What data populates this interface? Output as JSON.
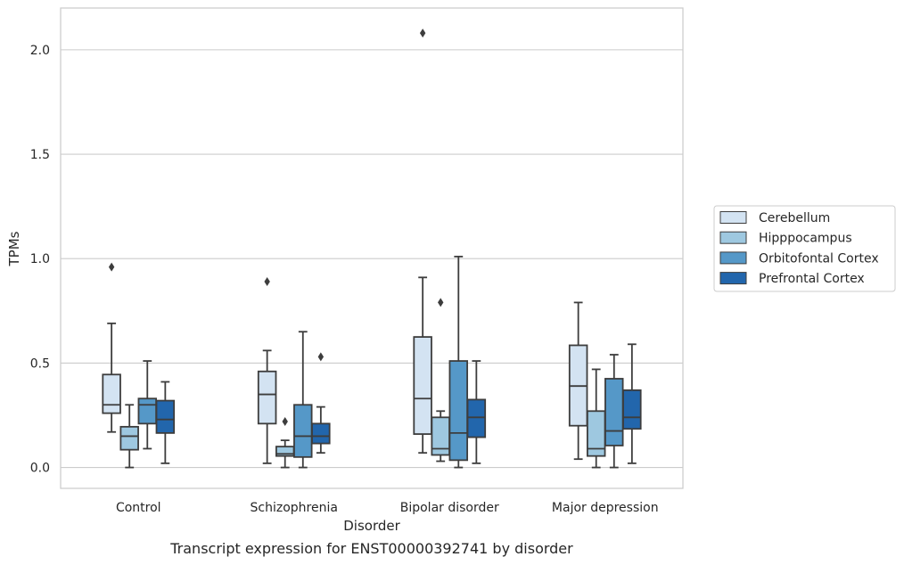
{
  "caption": "Transcript expression for ENST00000392741 by disorder",
  "chart_data": {
    "type": "boxplot",
    "title": "",
    "xlabel": "Disorder",
    "ylabel": "TPMs",
    "ylim": [
      -0.1,
      2.2
    ],
    "yticks": [
      0.0,
      0.5,
      1.0,
      1.5,
      2.0
    ],
    "ytick_labels": [
      "0.0",
      "0.5",
      "1.0",
      "1.5",
      "2.0"
    ],
    "grid": "horizontal",
    "legend_position": "right",
    "categories": [
      "Control",
      "Schizophrenia",
      "Bipolar disorder",
      "Major depression"
    ],
    "series": [
      {
        "name": "Cerebellum",
        "color": "#d3e3f2",
        "boxes": [
          {
            "whisker_low": 0.17,
            "q1": 0.26,
            "median": 0.3,
            "q3": 0.445,
            "whisker_high": 0.69,
            "outliers": [
              0.96
            ]
          },
          {
            "whisker_low": 0.02,
            "q1": 0.21,
            "median": 0.35,
            "q3": 0.46,
            "whisker_high": 0.56,
            "outliers": [
              0.89
            ]
          },
          {
            "whisker_low": 0.07,
            "q1": 0.16,
            "median": 0.33,
            "q3": 0.625,
            "whisker_high": 0.91,
            "outliers": [
              2.08
            ]
          },
          {
            "whisker_low": 0.04,
            "q1": 0.2,
            "median": 0.39,
            "q3": 0.585,
            "whisker_high": 0.79,
            "outliers": []
          }
        ]
      },
      {
        "name": "Hipppocampus",
        "color": "#9ec8e0",
        "boxes": [
          {
            "whisker_low": 0.0,
            "q1": 0.085,
            "median": 0.15,
            "q3": 0.195,
            "whisker_high": 0.3,
            "outliers": []
          },
          {
            "whisker_low": 0.0,
            "q1": 0.055,
            "median": 0.065,
            "q3": 0.1,
            "whisker_high": 0.13,
            "outliers": [
              0.22
            ]
          },
          {
            "whisker_low": 0.03,
            "q1": 0.06,
            "median": 0.09,
            "q3": 0.24,
            "whisker_high": 0.27,
            "outliers": [
              0.79
            ]
          },
          {
            "whisker_low": 0.0,
            "q1": 0.055,
            "median": 0.09,
            "q3": 0.27,
            "whisker_high": 0.47,
            "outliers": []
          }
        ]
      },
      {
        "name": "Orbitofontal Cortex",
        "color": "#5598c8",
        "boxes": [
          {
            "whisker_low": 0.09,
            "q1": 0.21,
            "median": 0.3,
            "q3": 0.33,
            "whisker_high": 0.51,
            "outliers": []
          },
          {
            "whisker_low": 0.0,
            "q1": 0.05,
            "median": 0.15,
            "q3": 0.3,
            "whisker_high": 0.65,
            "outliers": []
          },
          {
            "whisker_low": 0.0,
            "q1": 0.035,
            "median": 0.165,
            "q3": 0.51,
            "whisker_high": 1.01,
            "outliers": []
          },
          {
            "whisker_low": 0.0,
            "q1": 0.105,
            "median": 0.175,
            "q3": 0.425,
            "whisker_high": 0.54,
            "outliers": []
          }
        ]
      },
      {
        "name": "Prefrontal Cortex",
        "color": "#2266ac",
        "boxes": [
          {
            "whisker_low": 0.02,
            "q1": 0.165,
            "median": 0.23,
            "q3": 0.32,
            "whisker_high": 0.41,
            "outliers": []
          },
          {
            "whisker_low": 0.07,
            "q1": 0.115,
            "median": 0.15,
            "q3": 0.21,
            "whisker_high": 0.29,
            "outliers": [
              0.53
            ]
          },
          {
            "whisker_low": 0.02,
            "q1": 0.145,
            "median": 0.24,
            "q3": 0.325,
            "whisker_high": 0.51,
            "outliers": []
          },
          {
            "whisker_low": 0.02,
            "q1": 0.185,
            "median": 0.24,
            "q3": 0.37,
            "whisker_high": 0.59,
            "outliers": []
          }
        ]
      }
    ]
  }
}
